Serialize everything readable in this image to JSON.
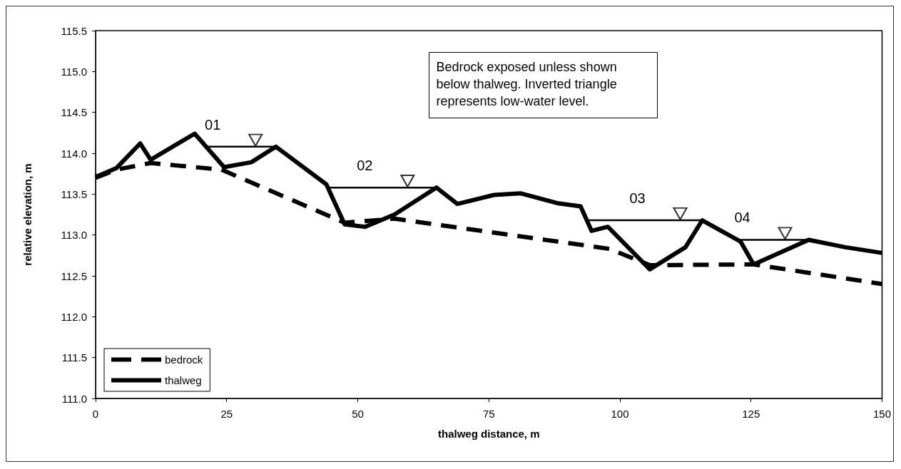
{
  "chart_data": {
    "type": "line",
    "xlabel": "thalweg distance, m",
    "ylabel": "relative elevation, m",
    "xlim": [
      0,
      150
    ],
    "xticks": [
      0,
      25,
      50,
      75,
      100,
      125,
      150
    ],
    "ylim": [
      111,
      115.5
    ],
    "yticks": [
      {
        "value": 111,
        "label": "111.0"
      },
      {
        "value": 111.5,
        "label": "111.5"
      },
      {
        "value": 112,
        "label": "112.0"
      },
      {
        "value": 112.5,
        "label": "112.5"
      },
      {
        "value": 113,
        "label": "113.0"
      },
      {
        "value": 113.5,
        "label": "113.5"
      },
      {
        "value": 114,
        "label": "114.0"
      },
      {
        "value": 114.5,
        "label": "114.5"
      },
      {
        "value": 115,
        "label": "115.0"
      },
      {
        "value": 115.5,
        "label": "115.5"
      }
    ],
    "grid": false,
    "legend": "bottom left",
    "series": [
      {
        "name": "bedrock",
        "color": "#000000",
        "line_style": "dashed",
        "marker": "none",
        "x": [
          0,
          4,
          10.5,
          24,
          47.5,
          57,
          98,
          105.7,
          125.5,
          150
        ],
        "values": [
          113.7,
          113.8,
          113.88,
          113.8,
          113.15,
          113.2,
          112.83,
          112.63,
          112.64,
          112.4
        ]
      },
      {
        "name": "thalweg",
        "color": "#000000",
        "line_style": "solid",
        "marker": "none",
        "x": [
          0,
          4,
          8.5,
          10.5,
          18.9,
          24.5,
          29.7,
          34.4,
          44,
          47.5,
          51.4,
          57,
          65,
          69,
          76,
          81,
          88,
          92.5,
          94.6,
          97.7,
          105.7,
          112.5,
          115.7,
          123,
          125.5,
          136,
          143,
          150
        ],
        "values": [
          113.71,
          113.82,
          114.12,
          113.92,
          114.24,
          113.83,
          113.89,
          114.08,
          113.62,
          113.13,
          113.1,
          113.25,
          113.58,
          113.38,
          113.49,
          113.51,
          113.39,
          113.35,
          113.05,
          113.1,
          112.58,
          112.85,
          113.18,
          112.92,
          112.64,
          112.94,
          112.85,
          112.78
        ]
      },
      {
        "type": "line",
        "color": "#000000",
        "line_style": "solid",
        "marker": "none",
        "x": [
          21,
          34.4,
          39,
          44,
          65,
          80,
          94,
          115.7,
          120,
          123,
          136
        ],
        "values": [
          114.08,
          114.08,
          null,
          113.58,
          113.58,
          null,
          113.18,
          113.18,
          null,
          112.94,
          112.94
        ]
      },
      {
        "type": "scatter",
        "color": "#000000",
        "marker": "triangle",
        "x": [
          30.5,
          59.5,
          111.5,
          131.5
        ],
        "values": [
          114.16,
          113.66,
          113.26,
          113.02
        ]
      }
    ],
    "annotations": [
      "Bedrock exposed unless shown below thalweg. Inverted triangle represents low-water level.",
      "01",
      "02",
      "03",
      "04"
    ]
  }
}
